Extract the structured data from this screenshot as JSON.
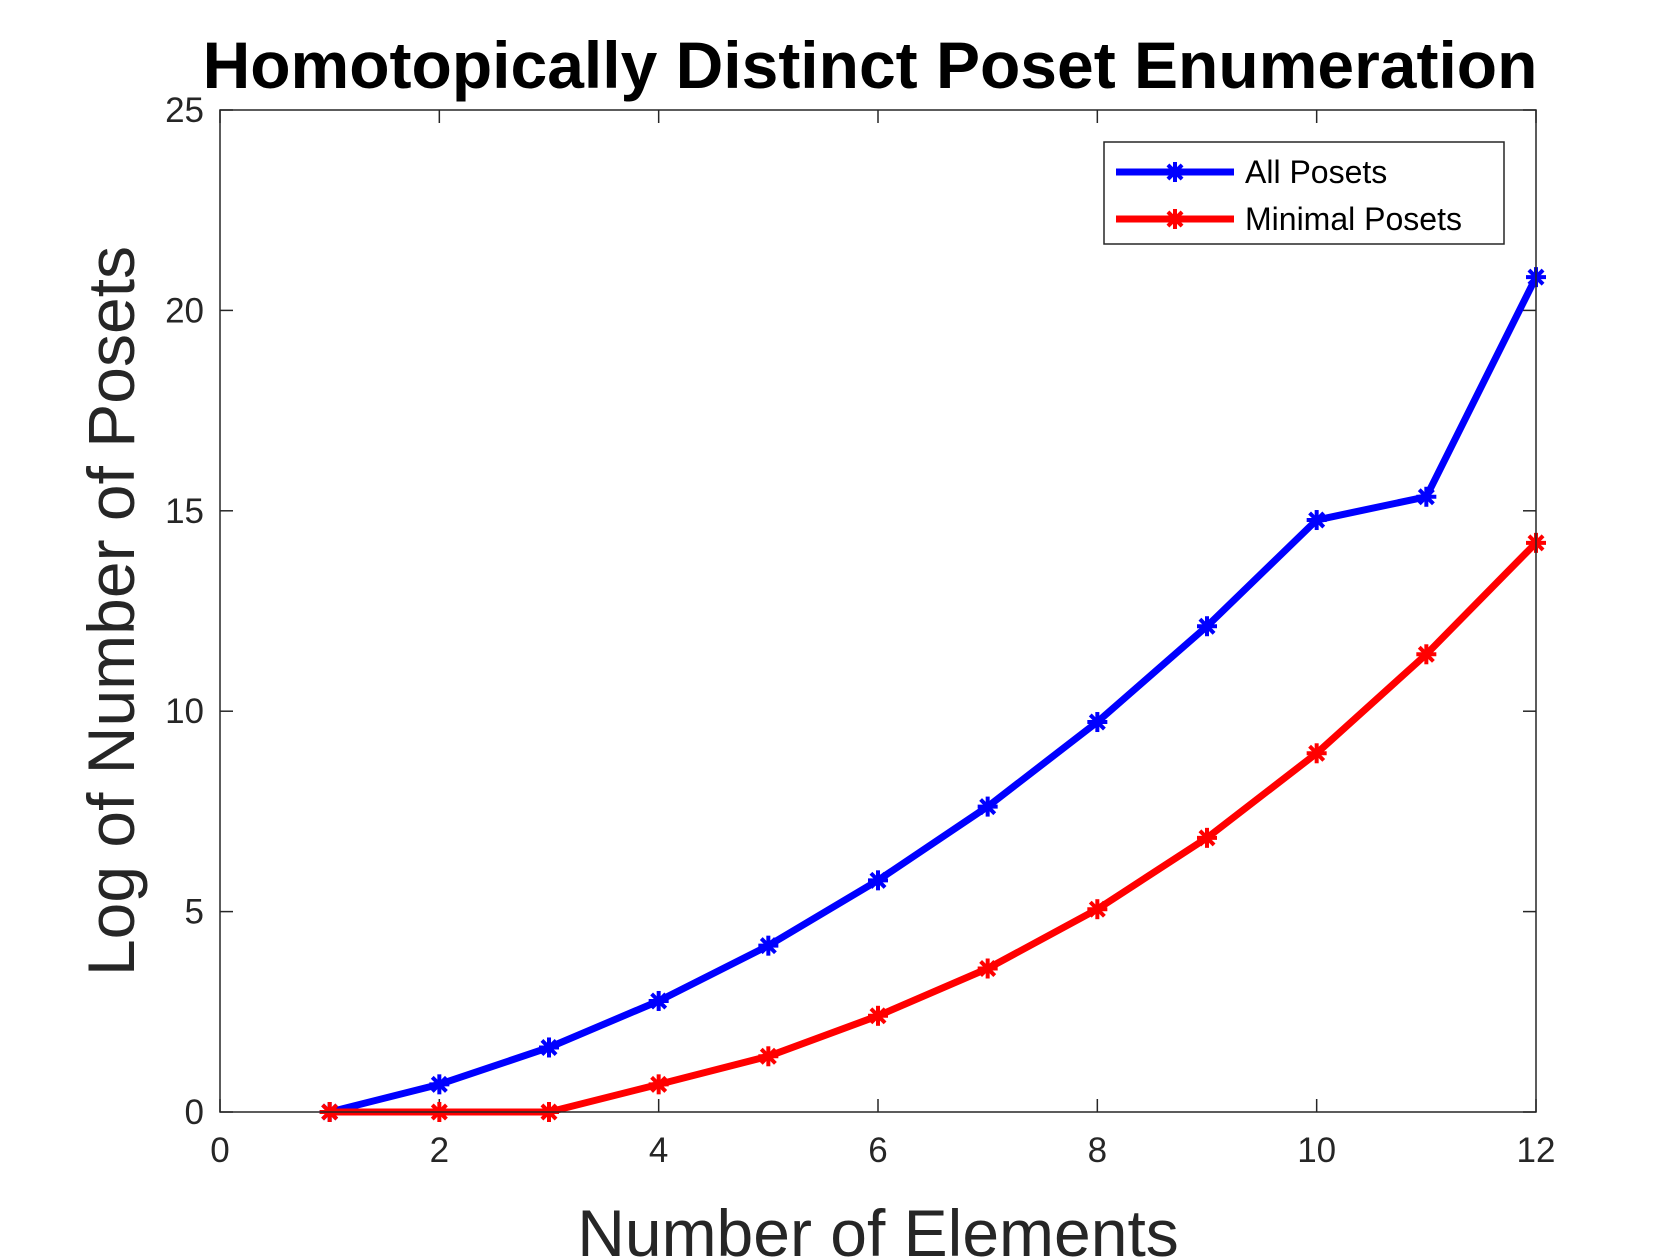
{
  "chart_data": {
    "type": "line",
    "title": "Homotopically Distinct Poset Enumeration",
    "xlabel": "Number of Elements",
    "ylabel": "Log of Number of Posets",
    "xlim": [
      0,
      12
    ],
    "ylim": [
      0,
      25
    ],
    "xticks": [
      0,
      2,
      4,
      6,
      8,
      10,
      12
    ],
    "yticks": [
      0,
      5,
      10,
      15,
      20,
      25
    ],
    "grid": false,
    "legend_position": "top-right",
    "x": [
      1,
      2,
      3,
      4,
      5,
      6,
      7,
      8,
      9,
      10,
      11,
      12
    ],
    "series": [
      {
        "name": "All Posets",
        "color": "#0000ff",
        "marker": "asterisk",
        "values": [
          0,
          0.69,
          1.61,
          2.77,
          4.15,
          5.78,
          7.62,
          9.73,
          12.12,
          14.77,
          15.35,
          20.83
        ]
      },
      {
        "name": "Minimal Posets",
        "color": "#ff0000",
        "marker": "asterisk",
        "values": [
          0,
          0,
          0,
          0.69,
          1.39,
          2.4,
          3.58,
          5.06,
          6.84,
          8.95,
          11.42,
          14.2
        ]
      }
    ]
  }
}
